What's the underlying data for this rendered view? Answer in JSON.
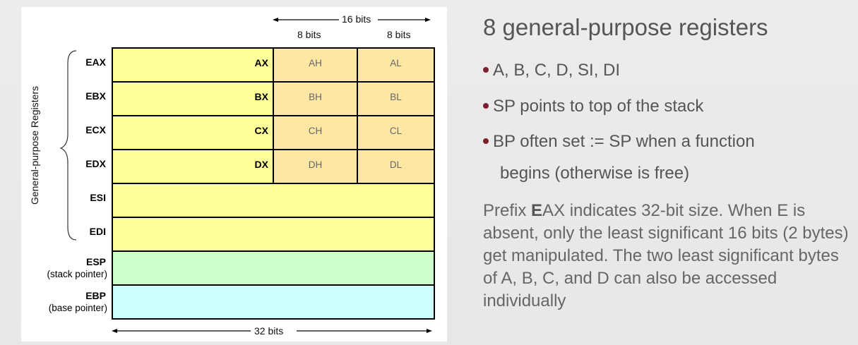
{
  "diagram": {
    "bits16": "16 bits",
    "bits8_left": "8 bits",
    "bits8_right": "8 bits",
    "bits32": "32 bits",
    "group_label": "General-purpose Registers",
    "registers": [
      {
        "name": "EAX",
        "sub": "AX",
        "high": "AH",
        "low": "AL"
      },
      {
        "name": "EBX",
        "sub": "BX",
        "high": "BH",
        "low": "BL"
      },
      {
        "name": "ECX",
        "sub": "CX",
        "high": "CH",
        "low": "CL"
      },
      {
        "name": "EDX",
        "sub": "DX",
        "high": "DH",
        "low": "DL"
      },
      {
        "name": "ESI"
      },
      {
        "name": "EDI"
      },
      {
        "name": "ESP",
        "note": "(stack pointer)"
      },
      {
        "name": "EBP",
        "note": "(base pointer)"
      }
    ],
    "colors": {
      "yellow": "#ffff99",
      "orange": "#fde7a3",
      "green": "#ccffcc",
      "cyan": "#ccffff"
    }
  },
  "text": {
    "heading": "8 general-purpose registers",
    "bullets": [
      "A, B, C, D, SI, DI",
      "SP points to top of the stack",
      "BP often set := SP when a function",
      "begins (otherwise is free)"
    ],
    "para_bold": "E",
    "para_rest": "AX indicates 32-bit size. When E is absent, only the least significant 16 bits (2 bytes) get manipulated. The two least significant bytes of A, B, C, and D can also be accessed individually",
    "para_prefix": "Prefix "
  }
}
